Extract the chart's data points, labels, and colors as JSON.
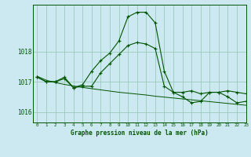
{
  "title": "Graphe pression niveau de la mer (hPa)",
  "background_color": "#cce8f0",
  "grid_color": "#99ccbb",
  "line_color": "#005500",
  "xlim": [
    -0.5,
    23
  ],
  "ylim": [
    1015.65,
    1019.55
  ],
  "yticks": [
    1016,
    1017,
    1018
  ],
  "xticks": [
    0,
    1,
    2,
    3,
    4,
    5,
    6,
    7,
    8,
    9,
    10,
    11,
    12,
    13,
    14,
    15,
    16,
    17,
    18,
    19,
    20,
    21,
    22,
    23
  ],
  "series1": {
    "x": [
      0,
      1,
      2,
      3,
      4,
      5,
      6,
      7,
      8,
      9,
      10,
      11,
      12,
      13,
      14,
      15,
      16,
      17,
      18,
      19,
      20,
      21,
      22,
      23
    ],
    "y": [
      1017.15,
      1017.0,
      1017.0,
      1017.1,
      1016.8,
      1016.85,
      1016.85,
      1017.3,
      1017.6,
      1017.9,
      1018.2,
      1018.3,
      1018.25,
      1018.1,
      1016.85,
      1016.65,
      1016.65,
      1016.7,
      1016.6,
      1016.65,
      1016.65,
      1016.7,
      1016.65,
      1016.6
    ]
  },
  "series2": {
    "x": [
      0,
      1,
      2,
      3,
      4,
      5,
      6,
      7,
      8,
      9,
      10,
      11,
      12,
      13,
      14,
      15,
      16,
      17,
      18,
      19,
      20,
      21,
      22,
      23
    ],
    "y": [
      1017.15,
      1017.0,
      1017.0,
      1017.15,
      1016.8,
      1016.9,
      1017.35,
      1017.7,
      1017.95,
      1018.35,
      1019.15,
      1019.3,
      1019.3,
      1018.95,
      1017.35,
      1016.65,
      1016.5,
      1016.3,
      1016.35,
      1016.65,
      1016.65,
      1016.5,
      1016.3,
      1016.35
    ]
  },
  "series3": {
    "x": [
      0,
      1,
      2,
      3,
      4,
      5,
      6,
      7,
      8,
      9,
      10,
      11,
      12,
      13,
      14,
      15,
      16,
      17,
      18,
      19,
      20,
      21,
      22,
      23
    ],
    "y": [
      1017.18,
      1017.05,
      1016.97,
      1016.91,
      1016.86,
      1016.81,
      1016.77,
      1016.73,
      1016.69,
      1016.65,
      1016.62,
      1016.59,
      1016.56,
      1016.52,
      1016.49,
      1016.46,
      1016.43,
      1016.4,
      1016.37,
      1016.34,
      1016.31,
      1016.28,
      1016.25,
      1016.22
    ]
  }
}
